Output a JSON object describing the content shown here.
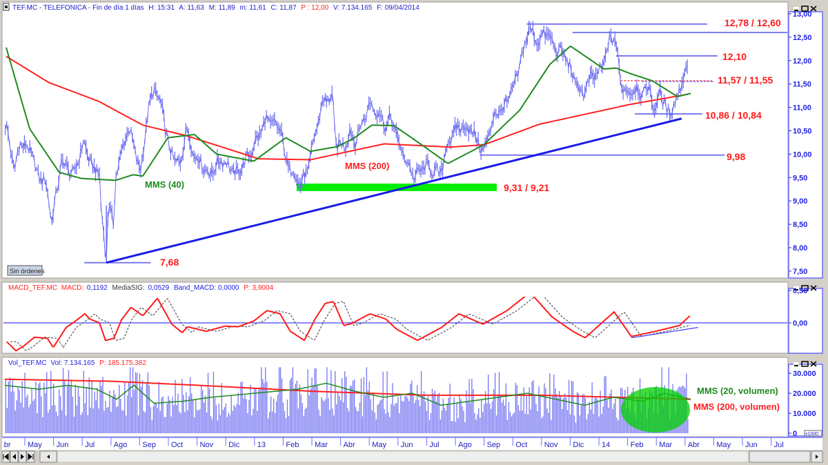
{
  "header": {
    "symbol": "TEF.MC - TELEFONICA - Fin de día 1 días",
    "hour": "H: 15:31",
    "open": "A: 11,63",
    "high": "M: 11,89",
    "low": "m: 11,61",
    "close": "C: 11,87",
    "price": "P : 12,00",
    "volume": "V: 7.134.165",
    "date": "F: 09/04/2014"
  },
  "main_panel": {
    "orders_button": "Sin órdenes",
    "axis_ticks": [
      "13,00",
      "12,50",
      "12,00",
      "11,50",
      "11,00",
      "10,50",
      "10,00",
      "9,50",
      "9,00",
      "8,50",
      "8,00",
      "7,50"
    ]
  },
  "macd_panel": {
    "name": "MACD_TEF.MC",
    "macd_label": "MACD:",
    "macd_value": "0,1192",
    "sig_label": "MediaSIG:",
    "sig_value": "0,0529",
    "band_label": "Band_MACD: 0,0000",
    "p_label": "P: 3,9004",
    "axis_ticks": [
      "0,50",
      "0,00"
    ]
  },
  "volume_panel": {
    "name": "Vol_TEF.MC",
    "vol_label": "Vol: 7.134.165",
    "p_label": "P: 185.175.382",
    "axis_ticks": [
      "30.000",
      "20.000",
      "10.000",
      "0"
    ],
    "unit_badge": "x1000"
  },
  "time_axis": {
    "months": [
      "Abr",
      "May",
      "Jun",
      "Jul",
      "Ago",
      "Sep",
      "Oct",
      "Nov",
      "Dic",
      "13",
      "Feb",
      "Mar",
      "Abr",
      "May",
      "Jun",
      "Jul",
      "Ago",
      "Sep",
      "Oct",
      "Nov",
      "Dic",
      "14",
      "Feb",
      "Mar",
      "Abr",
      "May",
      "Jun",
      "Jul"
    ]
  },
  "colors": {
    "price": "#6a6af0",
    "mms200": "#ff2020",
    "mms40": "#1e8a1e",
    "trend": "#1a1ae6",
    "support_zone": "#00ee00",
    "label": "#ff1a1a"
  },
  "chart_data": [
    {
      "type": "line",
      "title": "TEF.MC - TELEFONICA",
      "x_unit": "months since May 2012",
      "ylim": [
        7.5,
        13.0
      ],
      "price": [
        [
          -0.65,
          10.59
        ],
        [
          -0.36,
          9.66
        ],
        [
          -0.17,
          10.25
        ],
        [
          0.24,
          10.05
        ],
        [
          0.43,
          9.56
        ],
        [
          0.72,
          9.41
        ],
        [
          0.94,
          8.6
        ],
        [
          1.11,
          9.17
        ],
        [
          1.27,
          9.85
        ],
        [
          1.71,
          9.56
        ],
        [
          2.04,
          10.25
        ],
        [
          2.4,
          9.66
        ],
        [
          2.62,
          9.61
        ],
        [
          2.64,
          8.92
        ],
        [
          2.84,
          7.69
        ],
        [
          2.91,
          9.07
        ],
        [
          3.08,
          8.43
        ],
        [
          3.17,
          9.56
        ],
        [
          3.61,
          10.59
        ],
        [
          4.04,
          9.61
        ],
        [
          4.28,
          10.89
        ],
        [
          4.52,
          11.43
        ],
        [
          4.81,
          10.89
        ],
        [
          5.05,
          10.05
        ],
        [
          5.41,
          9.76
        ],
        [
          5.63,
          10.59
        ],
        [
          5.84,
          10.05
        ],
        [
          6.44,
          9.56
        ],
        [
          6.85,
          9.9
        ],
        [
          7.38,
          9.56
        ],
        [
          7.88,
          10.05
        ],
        [
          8.41,
          10.74
        ],
        [
          8.92,
          10.54
        ],
        [
          9.09,
          9.85
        ],
        [
          9.62,
          9.36
        ],
        [
          9.86,
          9.66
        ],
        [
          10.12,
          10.44
        ],
        [
          10.38,
          11.13
        ],
        [
          10.72,
          11.23
        ],
        [
          10.82,
          10.25
        ],
        [
          11.15,
          10.15
        ],
        [
          11.32,
          10.49
        ],
        [
          11.49,
          10.25
        ],
        [
          12.02,
          11.08
        ],
        [
          12.36,
          10.84
        ],
        [
          12.6,
          10.59
        ],
        [
          12.76,
          10.79
        ],
        [
          13.13,
          10.05
        ],
        [
          13.58,
          9.51
        ],
        [
          13.94,
          9.76
        ],
        [
          14.47,
          9.56
        ],
        [
          14.74,
          10.25
        ],
        [
          15.1,
          10.59
        ],
        [
          15.53,
          10.54
        ],
        [
          15.79,
          10.25
        ],
        [
          15.99,
          10.05
        ],
        [
          16.35,
          10.84
        ],
        [
          16.68,
          10.98
        ],
        [
          17.04,
          11.43
        ],
        [
          17.31,
          12.07
        ],
        [
          17.57,
          12.71
        ],
        [
          17.84,
          12.41
        ],
        [
          18.2,
          12.61
        ],
        [
          18.46,
          12.26
        ],
        [
          18.82,
          12.12
        ],
        [
          19.18,
          11.53
        ],
        [
          19.45,
          11.28
        ],
        [
          19.71,
          11.62
        ],
        [
          20.07,
          11.77
        ],
        [
          20.34,
          12.36
        ],
        [
          20.55,
          12.56
        ],
        [
          20.65,
          12.07
        ],
        [
          20.75,
          11.53
        ],
        [
          21.06,
          11.28
        ],
        [
          21.23,
          11.43
        ],
        [
          21.49,
          11.28
        ],
        [
          21.75,
          11.43
        ],
        [
          21.95,
          10.89
        ],
        [
          22.12,
          11.38
        ],
        [
          22.36,
          10.89
        ],
        [
          22.64,
          11.03
        ],
        [
          22.84,
          11.48
        ],
        [
          23.1,
          11.87
        ]
      ],
      "mms200": [
        [
          -0.65,
          12.09
        ],
        [
          0.84,
          11.53
        ],
        [
          2.57,
          11.13
        ],
        [
          4.11,
          10.62
        ],
        [
          5.65,
          10.39
        ],
        [
          8.15,
          9.9
        ],
        [
          9.95,
          9.88
        ],
        [
          12.52,
          10.22
        ],
        [
          14.83,
          10.15
        ],
        [
          15.99,
          10.2
        ],
        [
          17.93,
          10.64
        ],
        [
          20.17,
          10.94
        ],
        [
          21.06,
          11.06
        ],
        [
          23.1,
          11.28
        ]
      ],
      "mms40": [
        [
          -0.65,
          12.28
        ],
        [
          0.17,
          10.54
        ],
        [
          1.2,
          9.61
        ],
        [
          1.97,
          9.48
        ],
        [
          3.17,
          9.44
        ],
        [
          3.77,
          9.56
        ],
        [
          4.11,
          9.53
        ],
        [
          4.98,
          10.35
        ],
        [
          5.91,
          10.42
        ],
        [
          6.68,
          10.0
        ],
        [
          7.98,
          9.85
        ],
        [
          9.09,
          10.35
        ],
        [
          9.95,
          10.06
        ],
        [
          10.89,
          10.16
        ],
        [
          11.49,
          10.35
        ],
        [
          12.09,
          10.62
        ],
        [
          12.86,
          10.61
        ],
        [
          13.94,
          10.15
        ],
        [
          14.74,
          9.8
        ],
        [
          15.99,
          10.2
        ],
        [
          17.24,
          10.94
        ],
        [
          18.29,
          11.92
        ],
        [
          19.01,
          12.31
        ],
        [
          20.17,
          11.82
        ],
        [
          20.6,
          11.84
        ],
        [
          21.15,
          11.71
        ],
        [
          21.85,
          11.57
        ],
        [
          22.74,
          11.23
        ],
        [
          23.2,
          11.3
        ]
      ],
      "series_labels": {
        "mms40": "MMS (40)",
        "mms200": "MMS (200)"
      },
      "annotations": {
        "resistance_high": {
          "label": "12,78 / 12,60",
          "levels": [
            12.78,
            12.6
          ]
        },
        "resistance_mid": {
          "label": "12,10",
          "level": 12.1
        },
        "breakout": {
          "label": "11,57 / 11,55",
          "levels": [
            11.57,
            11.55
          ]
        },
        "support_recent": {
          "label": "10,86 / 10,84",
          "levels": [
            10.86,
            10.84
          ]
        },
        "gap_level": {
          "label": "9,98",
          "level": 9.98
        },
        "support_zone": {
          "label": "9,31 / 9,21",
          "levels": [
            9.31,
            9.21
          ]
        },
        "low": {
          "label": "7,68",
          "level": 7.68
        },
        "trendline": [
          [
            2.84,
            7.68
          ],
          [
            22.88,
            10.76
          ]
        ]
      }
    },
    {
      "type": "line",
      "title": "MACD_TEF.MC",
      "ylim": [
        -0.55,
        0.55
      ],
      "macd": [
        [
          -0.63,
          -0.29
        ],
        [
          -0.31,
          -0.43
        ],
        [
          -0.05,
          -0.36
        ],
        [
          0.34,
          -0.22
        ],
        [
          0.79,
          -0.24
        ],
        [
          0.99,
          -0.38
        ],
        [
          1.44,
          -0.07
        ],
        [
          1.71,
          0.01
        ],
        [
          2.09,
          0.14
        ],
        [
          2.26,
          0.06
        ],
        [
          2.6,
          0.0
        ],
        [
          2.81,
          -0.27
        ],
        [
          3.1,
          -0.24
        ],
        [
          3.37,
          0.05
        ],
        [
          3.7,
          0.24
        ],
        [
          4.11,
          0.11
        ],
        [
          4.62,
          0.38
        ],
        [
          5.12,
          -0.02
        ],
        [
          5.48,
          -0.15
        ],
        [
          5.67,
          -0.06
        ],
        [
          6.32,
          -0.13
        ],
        [
          6.97,
          -0.05
        ],
        [
          7.43,
          -0.06
        ],
        [
          7.98,
          0.03
        ],
        [
          8.44,
          0.19
        ],
        [
          8.89,
          0.14
        ],
        [
          9.25,
          -0.13
        ],
        [
          9.74,
          -0.27
        ],
        [
          10.1,
          0.05
        ],
        [
          10.46,
          0.3
        ],
        [
          10.75,
          0.33
        ],
        [
          11.11,
          -0.04
        ],
        [
          11.39,
          -0.01
        ],
        [
          12.02,
          0.14
        ],
        [
          12.57,
          0.06
        ],
        [
          12.96,
          -0.1
        ],
        [
          13.51,
          -0.23
        ],
        [
          13.68,
          -0.27
        ],
        [
          14.52,
          -0.07
        ],
        [
          15.12,
          0.14
        ],
        [
          15.96,
          -0.02
        ],
        [
          16.8,
          0.19
        ],
        [
          17.6,
          0.47
        ],
        [
          18.37,
          0.09
        ],
        [
          19.09,
          -0.13
        ],
        [
          19.52,
          -0.23
        ],
        [
          20.05,
          -0.02
        ],
        [
          20.53,
          0.17
        ],
        [
          21.13,
          -0.21
        ],
        [
          21.97,
          -0.13
        ],
        [
          22.81,
          -0.04
        ],
        [
          23.17,
          0.11
        ]
      ],
      "signal_lag_months": 0.35,
      "band": 0.0,
      "trendline": [
        [
          21.13,
          -0.23
        ],
        [
          23.45,
          -0.07
        ]
      ]
    },
    {
      "type": "bar",
      "title": "Vol_TEF.MC",
      "unit": "x1000",
      "ylim": [
        0,
        32
      ],
      "volume_level": [
        [
          -0.7,
          24
        ],
        [
          0.5,
          22
        ],
        [
          1.5,
          24
        ],
        [
          2.5,
          22
        ],
        [
          3.2,
          17
        ],
        [
          3.8,
          24
        ],
        [
          4.5,
          15
        ],
        [
          5.5,
          16
        ],
        [
          6.5,
          18
        ],
        [
          8,
          20
        ],
        [
          9.5,
          22
        ],
        [
          10.5,
          25
        ],
        [
          11.5,
          21
        ],
        [
          12.5,
          18
        ],
        [
          13.5,
          20
        ],
        [
          14.5,
          14
        ],
        [
          15.5,
          16
        ],
        [
          16.5,
          18
        ],
        [
          17.5,
          20
        ],
        [
          18.5,
          17
        ],
        [
          19.5,
          14
        ],
        [
          20.5,
          18
        ],
        [
          21.5,
          16
        ],
        [
          22.3,
          20
        ],
        [
          23.2,
          17
        ]
      ],
      "mms20": [
        [
          -0.7,
          24
        ],
        [
          0.5,
          22
        ],
        [
          1.5,
          24
        ],
        [
          2.5,
          22
        ],
        [
          3.2,
          17
        ],
        [
          3.8,
          24
        ],
        [
          4.5,
          15
        ],
        [
          5.5,
          16
        ],
        [
          6.5,
          18
        ],
        [
          8,
          20
        ],
        [
          9.5,
          22
        ],
        [
          10.5,
          25
        ],
        [
          11.5,
          21
        ],
        [
          12.5,
          18
        ],
        [
          13.5,
          20
        ],
        [
          14.5,
          14
        ],
        [
          15.5,
          16
        ],
        [
          16.5,
          18
        ],
        [
          17.5,
          20
        ],
        [
          18.5,
          17
        ],
        [
          19.5,
          14
        ],
        [
          20.5,
          18
        ],
        [
          21.5,
          16
        ],
        [
          22.3,
          20
        ],
        [
          23.2,
          17
        ]
      ],
      "mms200": [
        [
          -0.7,
          27
        ],
        [
          3,
          26
        ],
        [
          6,
          24
        ],
        [
          10,
          21
        ],
        [
          14,
          19
        ],
        [
          18,
          19
        ],
        [
          23.2,
          17
        ]
      ],
      "series_labels": {
        "mms20": "MMS (20, volumen)",
        "mms200": "MMS (200, volumen)"
      }
    }
  ]
}
